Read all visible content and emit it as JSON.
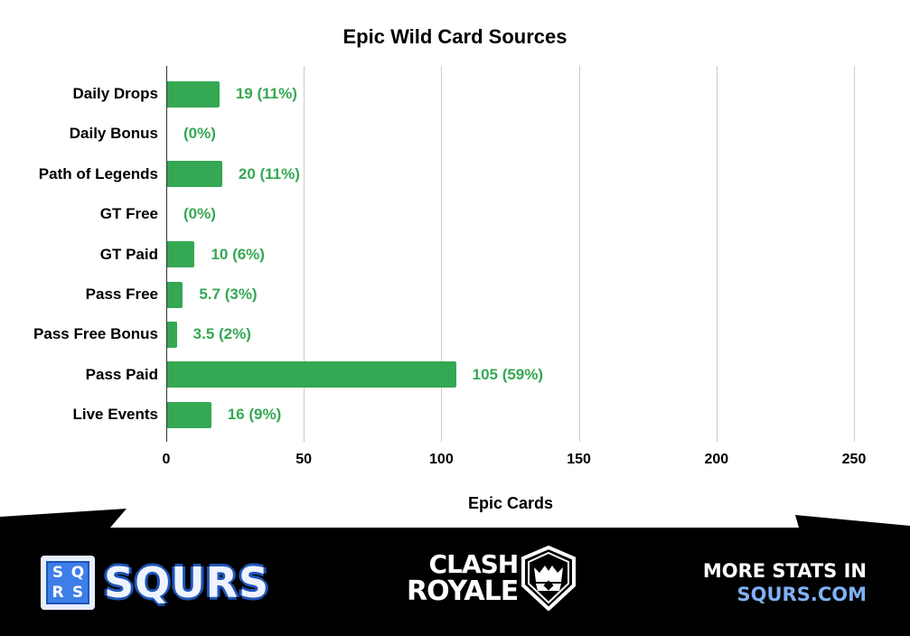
{
  "chart_data": {
    "type": "bar",
    "orientation": "horizontal",
    "title": "Epic Wild Card Sources",
    "xlabel": "Epic Cards",
    "ylabel": "",
    "xlim": [
      0,
      250
    ],
    "xticks": [
      "0",
      "50",
      "100",
      "150",
      "200",
      "250"
    ],
    "grid": true,
    "legend": null,
    "categories": [
      "Daily Drops",
      "Daily Bonus",
      "Path of Legends",
      "GT Free",
      "GT Paid",
      "Pass Free",
      "Pass Free Bonus",
      "Pass Paid",
      "Live Events"
    ],
    "values": [
      19,
      0,
      20,
      0,
      10,
      5.7,
      3.5,
      105,
      16
    ],
    "data_labels": [
      "19 (11%)",
      "(0%)",
      "20 (11%)",
      "(0%)",
      "10 (6%)",
      "5.7 (3%)",
      "3.5 (2%)",
      "105 (59%)",
      "16 (9%)"
    ],
    "bar_color": "#34a853"
  },
  "footer": {
    "squrs_logo_letters": [
      "S",
      "Q",
      "R",
      "S"
    ],
    "squrs_wordmark": "SQURS",
    "clash_royale_line1": "CLASH",
    "clash_royale_line2": "ROYALE",
    "more_stats_line1": "MORE STATS IN",
    "more_stats_line2": "SQURS.COM"
  }
}
